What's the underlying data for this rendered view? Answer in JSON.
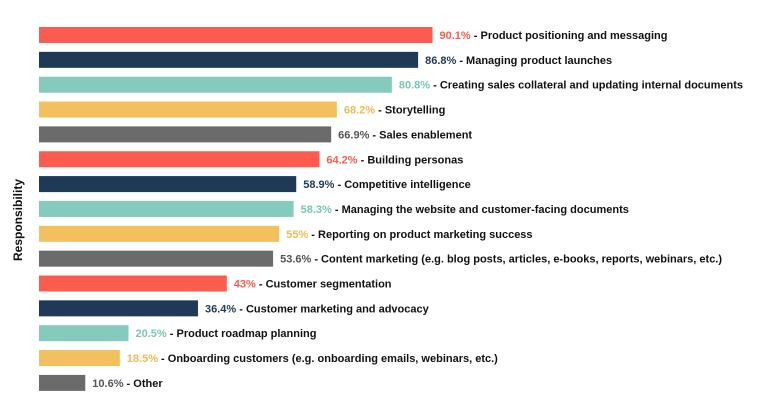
{
  "header_fragment": "…, ...y  ... ... ... ... ... ... ...",
  "chart_data": {
    "type": "bar",
    "orientation": "horizontal",
    "ylabel": "Responsibility",
    "xlim": [
      0,
      100
    ],
    "grid": false,
    "legend": "none",
    "categories": [
      "Product positioning and messaging",
      "Managing product launches",
      "Creating sales collateral and updating internal documents",
      "Storytelling",
      "Sales enablement",
      "Building personas",
      "Competitive intelligence",
      "Managing the website and customer-facing documents",
      "Reporting on product marketing success",
      "Content marketing (e.g. blog posts, articles, e-books, reports, webinars, etc.)",
      "Customer segmentation",
      "Customer marketing and advocacy",
      "Product roadmap planning",
      "Onboarding customers (e.g. onboarding emails, webinars, etc.)",
      "Other"
    ],
    "values": [
      90.1,
      86.8,
      80.8,
      68.2,
      66.9,
      64.2,
      58.9,
      58.3,
      55,
      53.6,
      43,
      36.4,
      20.5,
      18.5,
      10.6
    ],
    "value_labels": [
      "90.1%",
      "86.8%",
      "80.8%",
      "68.2%",
      "66.9%",
      "64.2%",
      "58.9%",
      "58.3%",
      "55%",
      "53.6%",
      "43%",
      "36.4%",
      "20.5%",
      "18.5%",
      "10.6%"
    ],
    "separator": " - ",
    "colors": [
      "#fb5c4d",
      "#1f3a56",
      "#84cbbd",
      "#f2c05f",
      "#6b6b6b",
      "#fb5c4d",
      "#1f3a56",
      "#84cbbd",
      "#f2c05f",
      "#6b6b6b",
      "#fb5c4d",
      "#1f3a56",
      "#84cbbd",
      "#f2c05f",
      "#6b6b6b"
    ]
  }
}
